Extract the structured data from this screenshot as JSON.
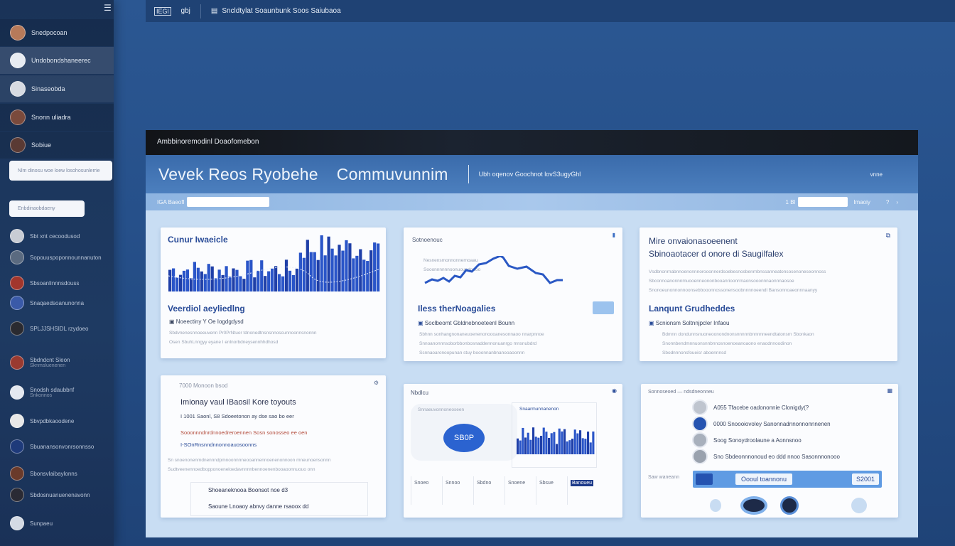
{
  "sidebar": {
    "menu_icon": "menu-icon",
    "items": [
      {
        "label": "Snedpocoan"
      },
      {
        "label": "Undobondshaneerec"
      },
      {
        "label": "Sinaseobda"
      },
      {
        "label": "Snonn uliadra"
      },
      {
        "label": "Sobiue"
      }
    ],
    "search_placeholder": "Nlm dinosu woe loew losohosunlerrie",
    "input_placeholder": "Enbdinaobdaeny",
    "contacts": [
      {
        "name": "Sbt xnt cecoodusod",
        "sub": ""
      },
      {
        "name": "Sopouuspoponnounnanuton",
        "sub": ""
      },
      {
        "name": "Sbsoanlinnnsdouss",
        "sub": ""
      },
      {
        "name": "Snaqaedsoanunonna",
        "sub": ""
      },
      {
        "name": "SPLJJSHSIDL rzydoeo",
        "sub": ""
      },
      {
        "name": "Sbdndcnt Sleon",
        "sub": "Sknmsluenenen"
      },
      {
        "name": "Snodsh sdaubbnf",
        "sub": "Snkonnos"
      },
      {
        "name": "Sbvpdbkaoodene",
        "sub": ""
      },
      {
        "name": "Sbuanansonvonrsonnsso",
        "sub": ""
      },
      {
        "name": "Sbonsvlaibaylonns",
        "sub": ""
      },
      {
        "name": "Sbdosnuanuenenavonn",
        "sub": ""
      },
      {
        "name": "Sunpaeu",
        "sub": ""
      }
    ]
  },
  "topbar": {
    "icon1": "IEGl",
    "icon2": "gbj",
    "doc_title": "Sncldtylat Soaunbunk Soos Saiubaoa"
  },
  "panel": {
    "header": "Ambbinoremodinl Doaofomebon",
    "title": "Vevek Reos Ryobehe",
    "subtitle": "Commuvunnim",
    "tagline": "Ubh oqenov Goochnot lovS3ugyGhl",
    "title_right": "vnne",
    "toolbar_left": "IGA Baeofl",
    "toolbar_right": "1 Bl",
    "toolbar_right_label": "Imaoiy"
  },
  "cards": [
    {
      "chart_title": "Cunur Iwaeicle",
      "heading": "Veerdiol aeyliedlng",
      "row": "Noeectiny Y Oe Iogdgdysd",
      "lines": [
        "Sbdvnenesnnoeeuvenn Pr0PrNtuor tdnonedtnsnsnnoscunnoonnsnonnn",
        "Osen SbuhLnngyy eyane I enlnorbdneysennhhdhosd"
      ]
    },
    {
      "chart_title": "Sotnoenouc",
      "legend": [
        "Nesnensmonnonnernoaau",
        "Sooonnnnnnoonuoupdnaoo"
      ],
      "heading": "Iless therNoagalies",
      "row": "Soclbeomt Gbldnebnoeteenl Bounn",
      "lines": [
        "Sbhnn sonhangnonaneuoenenonoooanesonnaoo nnarpnnoe",
        "Snnoanonnnsoborbbonbosnaddennonuanrgo mnsnubdrd",
        "Ssnnaoaronoopunan stuy booonnanbnanooaoonnn"
      ]
    },
    {
      "title1": "Mire onvaionasoeenent",
      "title2": "Sbinoaotacer d onore di Saugilfalex",
      "lines": [
        "Vsdbnonrnabnnoenonnnorooonnerdsoebesnosbenrnbnssanneatonsosenoneseonnoss",
        "Sbconnoanonnnmuooenneononbooanrioonrrnaonsooonnnaonnnaosoe",
        "Snonoeunonnonnoonsebbooonnossonensoobnnnnoeendl Bansonnoaeonnnaanyy"
      ],
      "heading": "Lanqunt Grudheddes",
      "row": "Scnionsm Soltnnjpcler Infaou",
      "lines2": [
        "Bdmnn dondunnsnuoneoonondnonsnnnnnbnnnnneendtatonsrn Sbonkaon",
        "Snonnbendmnnuonsnnbnnosnoenoeanoaono enaodnnoodinon",
        "Sbodnnnonsfoueisr aboennnsd"
      ]
    },
    {
      "head": "7000 Monoon bsod",
      "title": "Imionay vaul IBaosil Kore toyouts",
      "rows": [
        "I 1001 Saonl, S8 Sdoeetonon ay dse sao bo eer",
        "Sooonnndnrdnnoedreroennen Sosn sonosseo ee oen",
        "I-SOnRnsnndnnonnoauosoonns"
      ],
      "lines": [
        "Sn snoenonenmdnennndpmnoonnnneooannennoenenonnoon mneunoensonnn",
        "Sudtveenennoedbopponoeneloedavnnnnbennoenenbooaoonnuouo onn"
      ],
      "sub_rows": [
        "Shoeaneknooa Boonsot noe d3",
        "Saoune Lnoaoy abnvy danne rsaoox dd"
      ]
    },
    {
      "head": "Nbdlcu",
      "badge": "SB0P",
      "legend1": "Snnaeuvonnoneoseen",
      "legend2": "Snaarmunnanenon",
      "table": [
        "Snoeo",
        "Snnoo",
        "Sbdno",
        "Snoene",
        "Sbsue",
        "Banoueu"
      ]
    },
    {
      "head": "Sonnoseoed",
      "head2": "ndsdneonneu",
      "items": [
        "A055 Tfacebe oadononnie Clonigdy(?",
        "0000 Snoooiovoley Sanonnadnnonnonnnenen",
        "Soog Sonoydroolaune a Aonnsnoo",
        "Sno Sbdeonnnonoud eo ddd nnoo Sasonnnonooo"
      ],
      "bar_label": "Saw waneann",
      "pill": "Oooul toannonu",
      "pill2": "S2001"
    }
  ]
}
